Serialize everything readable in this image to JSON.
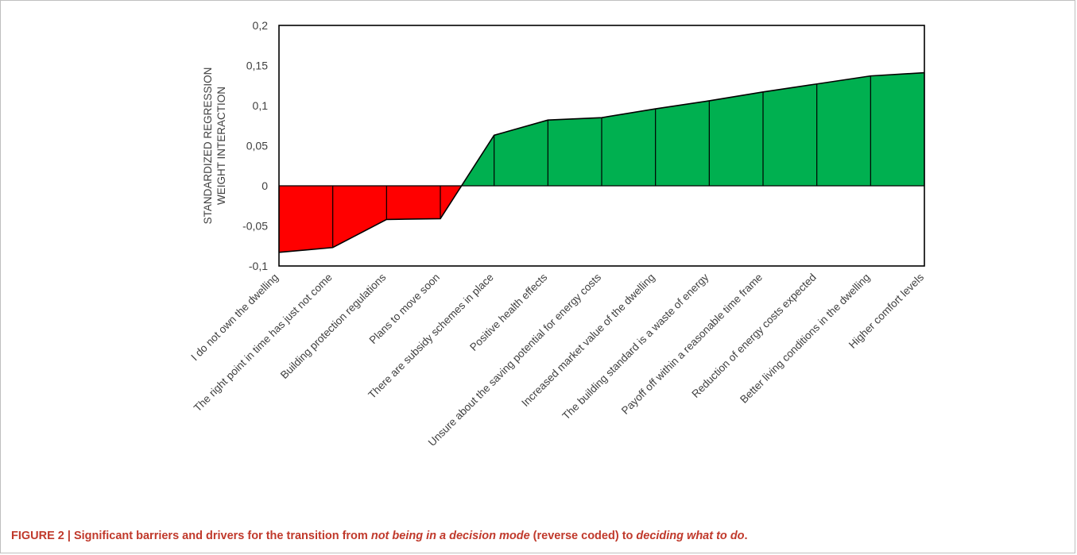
{
  "chart_data": {
    "type": "area",
    "ylabel_lines": [
      "STANDARDIZED REGRESSION",
      "WEIGHT INTERACTION"
    ],
    "ylim": [
      -0.1,
      0.2
    ],
    "yticks": [
      -0.1,
      -0.05,
      0,
      0.05,
      0.1,
      0.15,
      0.2
    ],
    "ytick_labels": [
      "-0,1",
      "-0,05",
      "0",
      "0,05",
      "0,1",
      "0,15",
      "0,2"
    ],
    "categories": [
      "I do not own the dwelling",
      "The right point in time has just not come",
      "Building protection regulations",
      "Plans to move soon",
      "There are subsidy schemes in place",
      "Positive health effects",
      "Unsure about the saving potential for energy costs",
      "Increased market value of the dwelling",
      "The building standard is a waste of energy",
      "Payoff off within a reasonable time frame",
      "Reduction of energy costs expected",
      "Better living conditions in the dwelling",
      "Higher comfort levels"
    ],
    "values": [
      -0.083,
      -0.077,
      -0.042,
      -0.041,
      0.063,
      0.082,
      0.085,
      0.096,
      0.106,
      0.117,
      0.127,
      0.137,
      0.141
    ],
    "grid": false,
    "colors": {
      "negative": "#ff0000",
      "positive": "#00b050",
      "line": "#000000"
    }
  },
  "caption": {
    "prefix": "FIGURE 2 | Significant barriers and drivers for the transition from ",
    "em1": "not being in a decision mode",
    "mid": " (reverse coded) to ",
    "em2": "deciding what to do",
    "suffix": "."
  }
}
